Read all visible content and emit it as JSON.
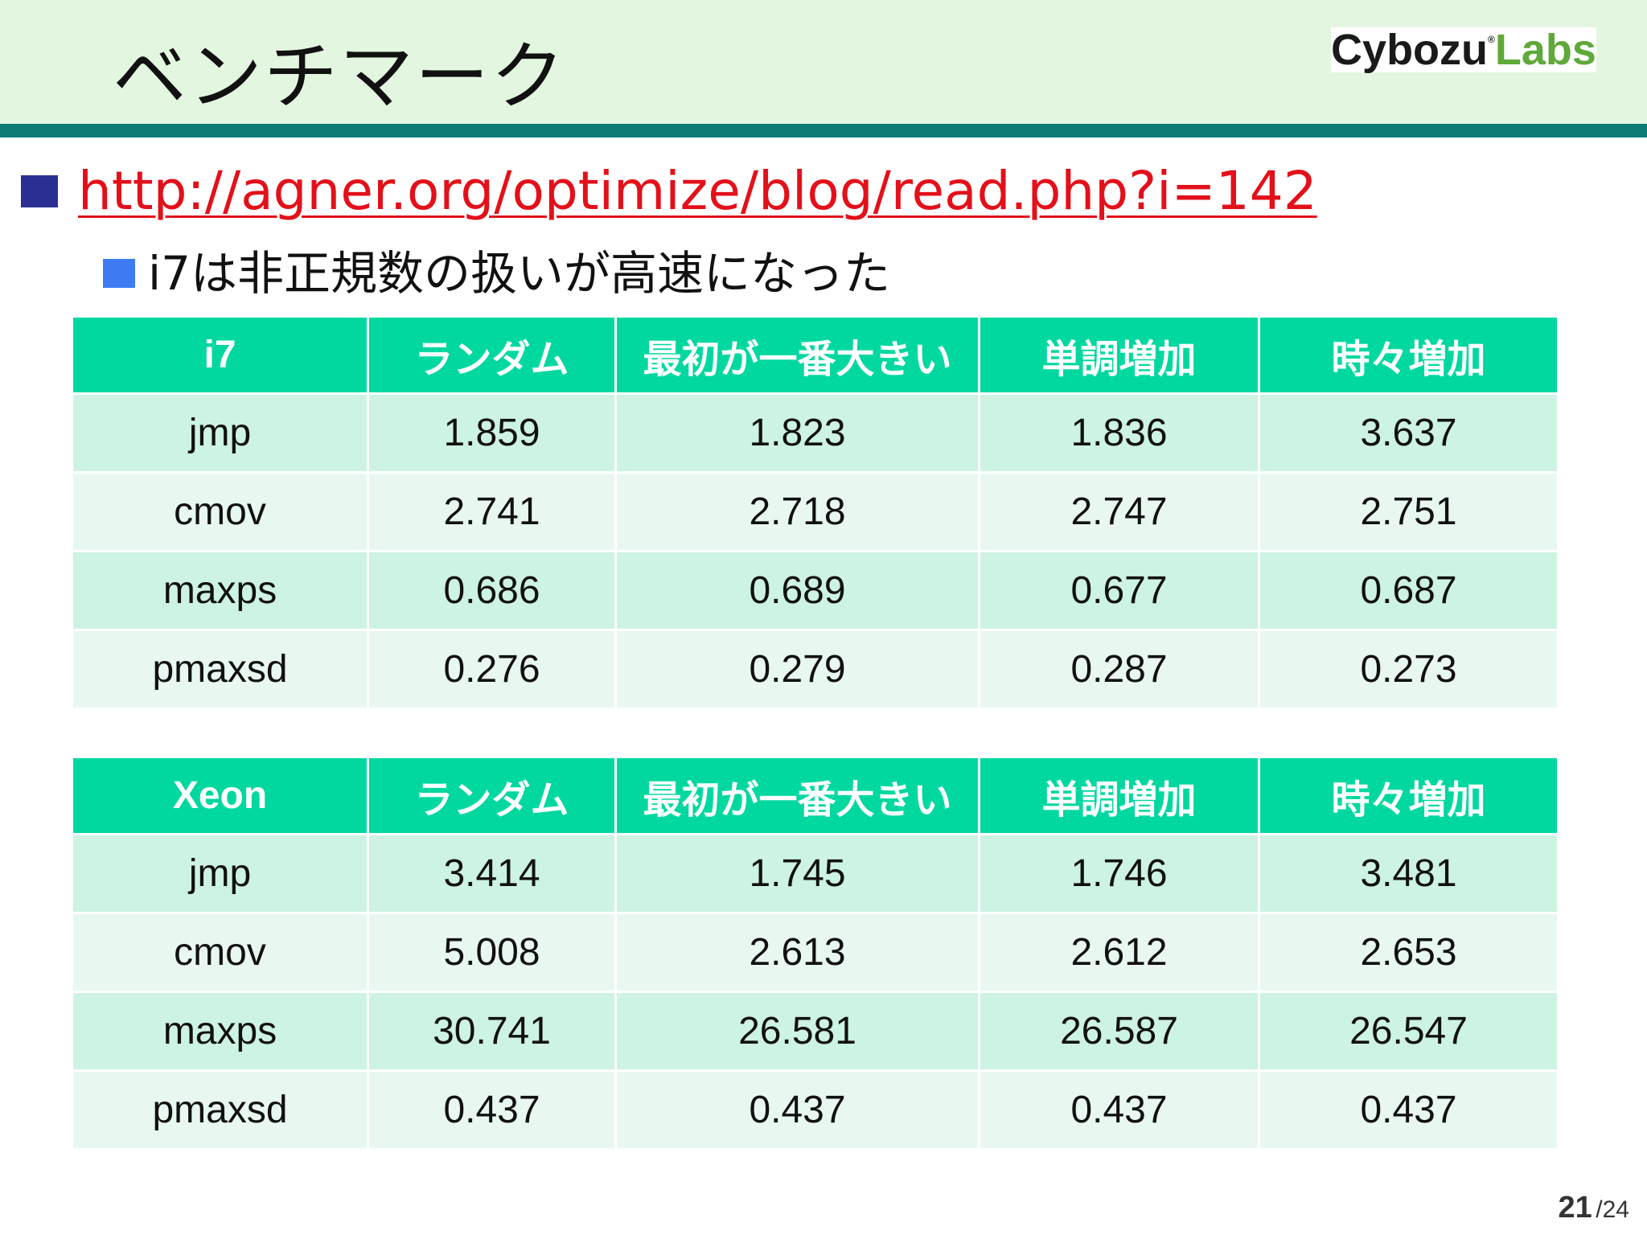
{
  "slide": {
    "title": "ベンチマーク",
    "logo": {
      "part1": "Cybozu",
      "mark": "®",
      "part2": "Labs"
    },
    "bullet_link": "http://agner.org/optimize/blog/read.php?i=142",
    "sub_bullet": "i7は非正規数の扱いが高速になった",
    "page_current": "21",
    "page_total": "/24"
  },
  "tables": [
    {
      "headers": [
        "i7",
        "ランダム",
        "最初が一番大きい",
        "単調増加",
        "時々増加"
      ],
      "rows": [
        [
          "jmp",
          "1.859",
          "1.823",
          "1.836",
          "3.637"
        ],
        [
          "cmov",
          "2.741",
          "2.718",
          "2.747",
          "2.751"
        ],
        [
          "maxps",
          "0.686",
          "0.689",
          "0.677",
          "0.687"
        ],
        [
          "pmaxsd",
          "0.276",
          "0.279",
          "0.287",
          "0.273"
        ]
      ]
    },
    {
      "headers": [
        "Xeon",
        "ランダム",
        "最初が一番大きい",
        "単調増加",
        "時々増加"
      ],
      "rows": [
        [
          "jmp",
          "3.414",
          "1.745",
          "1.746",
          "3.481"
        ],
        [
          "cmov",
          "5.008",
          "2.613",
          "2.612",
          "2.653"
        ],
        [
          "maxps",
          "30.741",
          "26.581",
          "26.587",
          "26.547"
        ],
        [
          "pmaxsd",
          "0.437",
          "0.437",
          "0.437",
          "0.437"
        ]
      ]
    }
  ],
  "colors": {
    "header_band": "#e3f7e0",
    "rule": "#0d7c74",
    "table_header": "#00d8a0",
    "row_odd": "#cdf3e2",
    "row_even": "#e8f8f1",
    "link": "#e3101a",
    "bullet_main": "#2b2f93",
    "bullet_sub": "#3d7cf2"
  }
}
